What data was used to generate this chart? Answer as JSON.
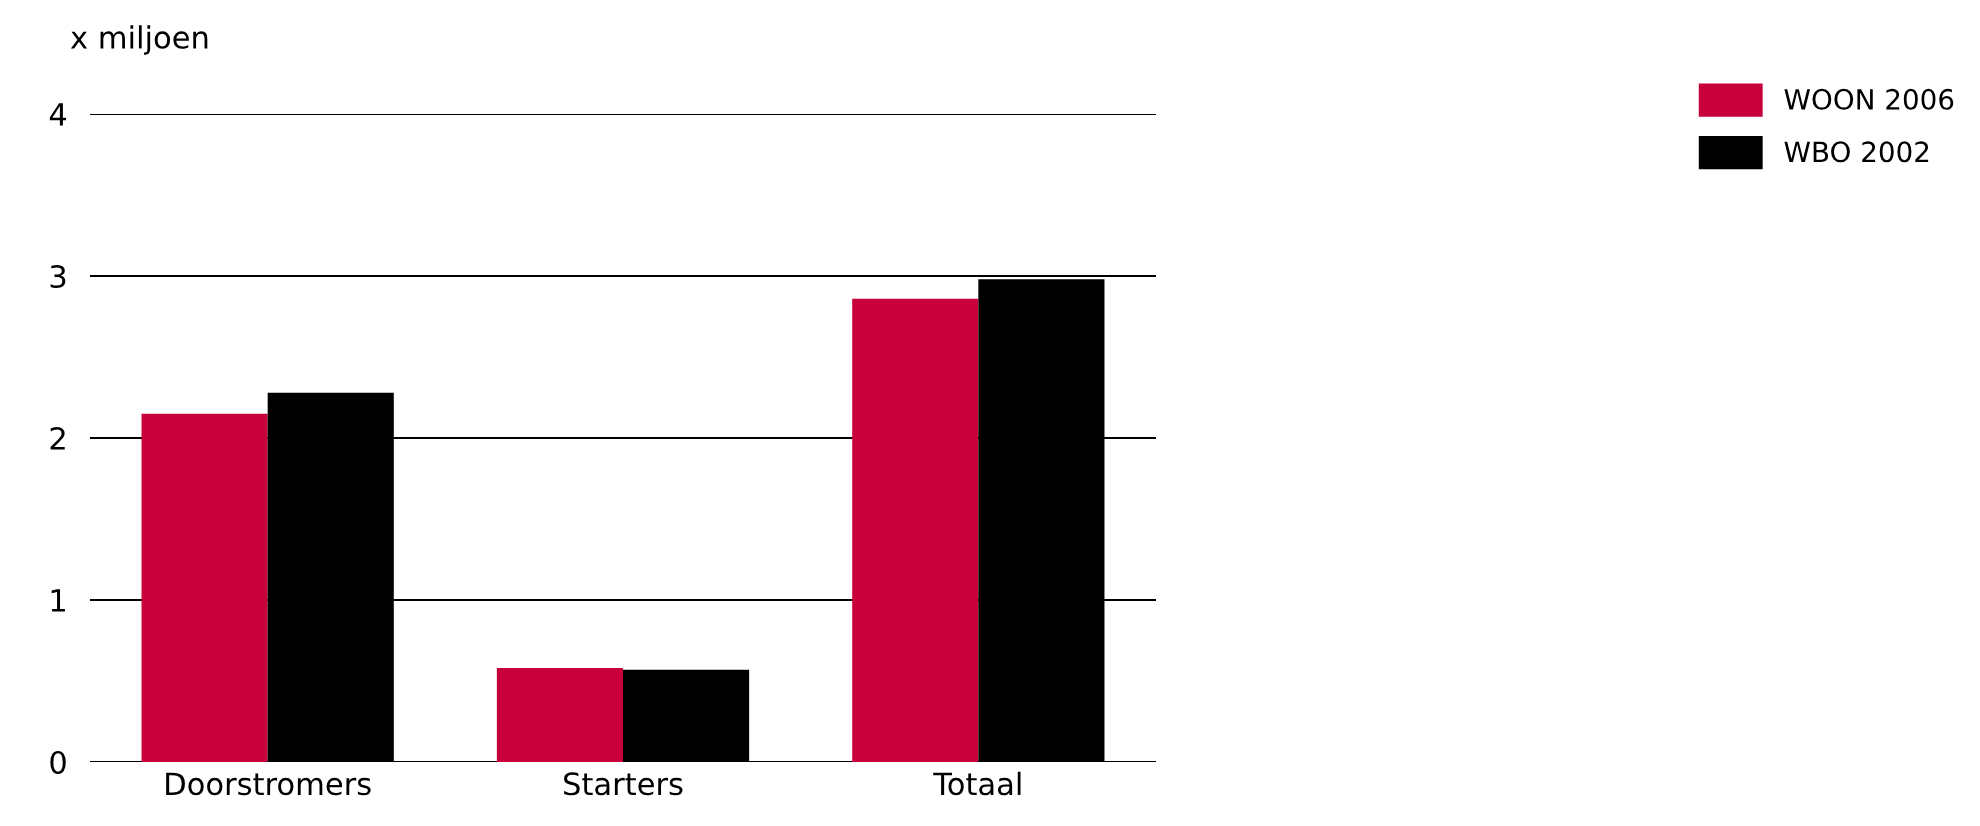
{
  "chart_data": {
    "type": "bar",
    "ylabel": "x miljoen",
    "categories": [
      "Doorstromers",
      "Starters",
      "Totaal"
    ],
    "series": [
      {
        "name": "WOON 2006",
        "color": "#c8003c",
        "values": [
          2.15,
          0.58,
          2.86
        ]
      },
      {
        "name": "WBO 2002",
        "color": "#000000",
        "values": [
          2.28,
          0.57,
          2.98
        ]
      }
    ],
    "ylim": [
      0,
      4
    ],
    "yticks": [
      0,
      1,
      2,
      3,
      4
    ],
    "grid": "y",
    "legend": "top right"
  }
}
